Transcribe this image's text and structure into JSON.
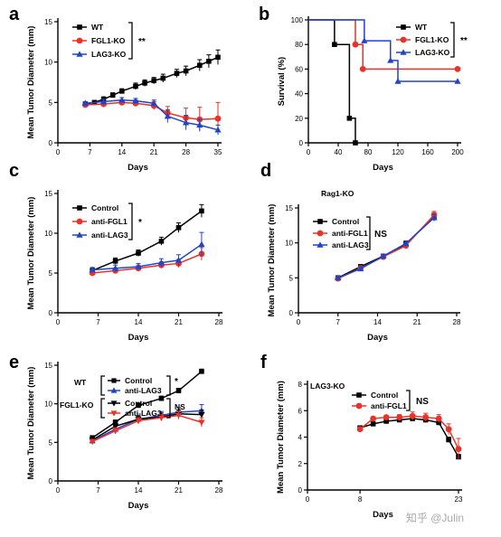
{
  "colors": {
    "black": "#000000",
    "red": "#e8322a",
    "blue": "#1f44c8"
  },
  "watermark": "知乎 @Julin",
  "chart_data": [
    {
      "panel": "a",
      "type": "line",
      "ylabel": "Mean Tumor Diameter (mm)",
      "xlabel": "Days",
      "xlim": [
        0,
        35
      ],
      "ylim": [
        0,
        15
      ],
      "xticks": [
        0,
        7,
        14,
        21,
        28,
        35
      ],
      "yticks": [
        0,
        5,
        10,
        15
      ],
      "legend": {
        "significance": "**"
      },
      "series": [
        {
          "name": "WT",
          "color": "#000000",
          "marker": "square",
          "x": [
            6,
            8,
            10,
            12,
            14,
            17,
            19,
            21,
            23,
            26,
            28,
            31,
            33,
            35
          ],
          "y": [
            4.8,
            5.0,
            5.4,
            5.9,
            6.4,
            7.0,
            7.4,
            7.7,
            8.0,
            8.6,
            8.9,
            9.6,
            10.1,
            10.6
          ],
          "err": [
            0.2,
            0.2,
            0.3,
            0.3,
            0.3,
            0.4,
            0.4,
            0.4,
            0.5,
            0.5,
            0.6,
            0.7,
            0.8,
            0.9
          ]
        },
        {
          "name": "FGL1-KO",
          "color": "#e8322a",
          "marker": "circle",
          "x": [
            6,
            10,
            14,
            17,
            21,
            24,
            28,
            31,
            35
          ],
          "y": [
            4.7,
            4.8,
            5.0,
            4.9,
            4.6,
            3.7,
            3.1,
            2.9,
            3.0
          ],
          "err": [
            0.2,
            0.3,
            0.3,
            0.4,
            0.5,
            0.8,
            1.2,
            1.5,
            2.0
          ]
        },
        {
          "name": "LAG3-KO",
          "color": "#1f44c8",
          "marker": "triangle",
          "x": [
            6,
            10,
            14,
            17,
            21,
            24,
            28,
            31,
            35
          ],
          "y": [
            4.9,
            5.1,
            5.3,
            5.2,
            4.9,
            3.3,
            2.5,
            2.2,
            1.6
          ],
          "err": [
            0.2,
            0.3,
            0.3,
            0.3,
            0.4,
            0.8,
            0.9,
            0.7,
            0.6
          ]
        }
      ]
    },
    {
      "panel": "b",
      "type": "line",
      "step": true,
      "ylabel": "Survival (%)",
      "xlabel": "Days",
      "xlim": [
        0,
        200
      ],
      "ylim": [
        0,
        100
      ],
      "xticks": [
        0,
        40,
        80,
        120,
        160,
        200
      ],
      "yticks": [
        0,
        20,
        40,
        60,
        80,
        100
      ],
      "legend": {
        "significance": "**"
      },
      "series": [
        {
          "name": "WT",
          "color": "#000000",
          "marker": "square",
          "x": [
            0,
            35,
            35,
            55,
            55,
            63,
            63
          ],
          "y": [
            100,
            100,
            80,
            80,
            20,
            20,
            0
          ],
          "markers_x": [
            35,
            55,
            63
          ],
          "markers_y": [
            80,
            20,
            0
          ]
        },
        {
          "name": "FGL1-KO",
          "color": "#e8322a",
          "marker": "circle",
          "x": [
            0,
            63,
            63,
            73,
            73,
            200
          ],
          "y": [
            100,
            100,
            80,
            80,
            60,
            60
          ],
          "markers_x": [
            63,
            73,
            200
          ],
          "markers_y": [
            80,
            60,
            60
          ]
        },
        {
          "name": "LAG3-KO",
          "color": "#1f44c8",
          "marker": "triangle",
          "x": [
            0,
            75,
            75,
            110,
            110,
            120,
            120,
            200
          ],
          "y": [
            100,
            100,
            83,
            83,
            67,
            67,
            50,
            50
          ],
          "markers_x": [
            75,
            110,
            120,
            200
          ],
          "markers_y": [
            83,
            67,
            50,
            50
          ]
        }
      ]
    },
    {
      "panel": "c",
      "type": "line",
      "ylabel": "Mean Tumor Diameter (mm)",
      "xlabel": "Days",
      "xlim": [
        0,
        28
      ],
      "ylim": [
        0,
        15
      ],
      "xticks": [
        0,
        7,
        14,
        21,
        28
      ],
      "yticks": [
        0,
        5,
        10,
        15
      ],
      "legend": {
        "significance": "*"
      },
      "series": [
        {
          "name": "Control",
          "color": "#000000",
          "marker": "square",
          "x": [
            6,
            10,
            14,
            18,
            21,
            25
          ],
          "y": [
            5.3,
            6.5,
            7.5,
            9.0,
            10.7,
            12.8
          ],
          "err": [
            0.3,
            0.4,
            0.4,
            0.5,
            0.6,
            0.8
          ]
        },
        {
          "name": "anti-FGL1",
          "color": "#e8322a",
          "marker": "circle",
          "x": [
            6,
            10,
            14,
            18,
            21,
            25
          ],
          "y": [
            5.0,
            5.3,
            5.6,
            6.0,
            6.2,
            7.4
          ],
          "err": [
            0.3,
            0.3,
            0.4,
            0.4,
            0.5,
            0.8
          ]
        },
        {
          "name": "anti-LAG3",
          "color": "#1f44c8",
          "marker": "triangle",
          "x": [
            6,
            10,
            14,
            18,
            21,
            25
          ],
          "y": [
            5.4,
            5.6,
            5.8,
            6.3,
            6.6,
            8.6
          ],
          "err": [
            0.3,
            0.4,
            0.4,
            0.5,
            0.7,
            1.5
          ]
        }
      ]
    },
    {
      "panel": "d",
      "type": "line",
      "ylabel": "Mean Tumor Diameter (mm)",
      "xlabel": "Days",
      "xlim": [
        0,
        28
      ],
      "ylim": [
        0,
        15
      ],
      "xticks": [
        0,
        7,
        14,
        21,
        28
      ],
      "yticks": [
        0,
        5,
        10,
        15
      ],
      "legend": {
        "title": "Rag1-KO",
        "significance": "NS"
      },
      "series": [
        {
          "name": "Control",
          "color": "#000000",
          "marker": "square",
          "x": [
            7,
            11,
            15,
            19,
            24
          ],
          "y": [
            5.0,
            6.6,
            8.1,
            9.8,
            13.8
          ],
          "err": [
            0.2,
            0.3,
            0.3,
            0.4,
            0.5
          ]
        },
        {
          "name": "anti-FGL1",
          "color": "#e8322a",
          "marker": "circle",
          "x": [
            7,
            11,
            15,
            19,
            24
          ],
          "y": [
            4.9,
            6.4,
            8.0,
            9.6,
            14.0
          ],
          "err": [
            0.2,
            0.3,
            0.3,
            0.4,
            0.5
          ]
        },
        {
          "name": "anti-LAG3",
          "color": "#1f44c8",
          "marker": "triangle",
          "x": [
            7,
            11,
            15,
            19,
            24
          ],
          "y": [
            5.0,
            6.3,
            8.1,
            9.9,
            13.6
          ],
          "err": [
            0.2,
            0.3,
            0.3,
            0.4,
            0.5
          ]
        }
      ]
    },
    {
      "panel": "e",
      "type": "line",
      "ylabel": "Mean Tumor Diameter (mm)",
      "xlabel": "Days",
      "xlim": [
        0,
        28
      ],
      "ylim": [
        0,
        15
      ],
      "xticks": [
        0,
        7,
        14,
        21,
        28
      ],
      "yticks": [
        0,
        5,
        10,
        15
      ],
      "legend": {
        "groups": [
          {
            "label": "WT",
            "items": [
              "Control",
              "anti-LAG3"
            ],
            "significance": "*"
          },
          {
            "label": "FGL1-KO",
            "items": [
              "Control",
              "anti-LAG3"
            ],
            "significance": "NS"
          }
        ]
      },
      "series": [
        {
          "name": "Control",
          "group": "WT",
          "color": "#000000",
          "marker": "square",
          "x": [
            6,
            10,
            14,
            18,
            21,
            25
          ],
          "y": [
            5.6,
            7.6,
            9.8,
            10.7,
            11.7,
            14.2
          ],
          "err": [
            0.2,
            0.3,
            0.3,
            0.3,
            0.3,
            0.3
          ]
        },
        {
          "name": "anti-LAG3",
          "group": "WT",
          "color": "#1f44c8",
          "marker": "triangle",
          "x": [
            6,
            10,
            14,
            18,
            21,
            25
          ],
          "y": [
            5.2,
            6.7,
            8.0,
            8.5,
            8.9,
            9.1
          ],
          "err": [
            0.3,
            0.4,
            0.5,
            0.5,
            0.6,
            0.8
          ]
        },
        {
          "name": "Control",
          "group": "FGL1-KO",
          "color": "#000000",
          "marker": "triangle-down",
          "x": [
            6,
            10,
            14,
            18,
            21,
            25
          ],
          "y": [
            5.3,
            7.1,
            8.0,
            8.3,
            8.7,
            8.6
          ],
          "err": [
            0.3,
            0.4,
            0.4,
            0.5,
            0.5,
            0.6
          ]
        },
        {
          "name": "anti-LAG3",
          "group": "FGL1-KO",
          "color": "#e8322a",
          "marker": "triangle-down",
          "x": [
            6,
            10,
            14,
            18,
            21,
            25
          ],
          "y": [
            5.1,
            6.5,
            7.8,
            8.2,
            8.5,
            7.6
          ],
          "err": [
            0.3,
            0.4,
            0.4,
            0.4,
            0.5,
            0.6
          ]
        }
      ]
    },
    {
      "panel": "f",
      "type": "line",
      "ylabel": "Mean Tumor Diameter (mm)",
      "xlabel": "Days",
      "xlim": [
        0,
        23
      ],
      "ylim": [
        0,
        8
      ],
      "xticks": [
        0,
        8,
        23
      ],
      "yticks": [
        0,
        2,
        4,
        6,
        8
      ],
      "legend": {
        "title": "LAG3-KO",
        "significance": "NS"
      },
      "series": [
        {
          "name": "Control",
          "color": "#000000",
          "marker": "square",
          "x": [
            8,
            10,
            12,
            14,
            16,
            18,
            20,
            21.5,
            23
          ],
          "y": [
            4.7,
            5.0,
            5.2,
            5.3,
            5.4,
            5.3,
            5.1,
            3.8,
            2.5
          ],
          "err": [
            0.1,
            0.1,
            0.1,
            0.1,
            0.1,
            0.2,
            0.2,
            0.2,
            0.2
          ]
        },
        {
          "name": "anti-FGL1",
          "color": "#e8322a",
          "marker": "circle",
          "x": [
            8,
            10,
            12,
            14,
            16,
            18,
            20,
            21.5,
            23
          ],
          "y": [
            4.6,
            5.4,
            5.5,
            5.5,
            5.6,
            5.5,
            5.4,
            4.6,
            3.1
          ],
          "err": [
            0.1,
            0.1,
            0.1,
            0.2,
            0.3,
            0.3,
            0.3,
            0.4,
            0.8
          ]
        }
      ]
    }
  ]
}
